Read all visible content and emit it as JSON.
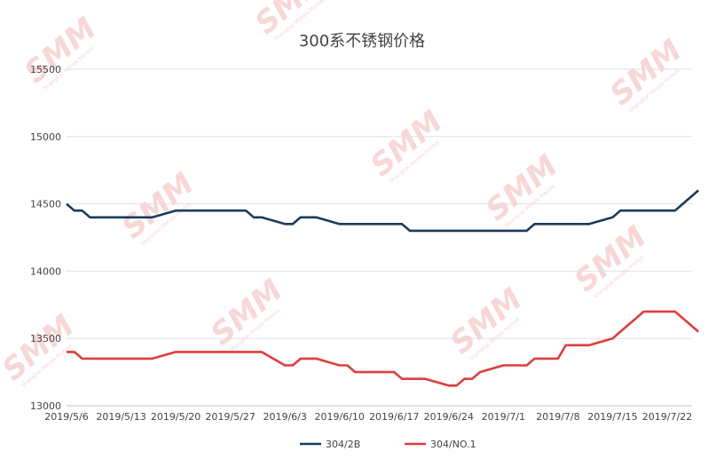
{
  "chart_data": {
    "type": "line",
    "title": "300系不锈钢价格",
    "xlabel": "",
    "ylabel": "",
    "ylim": [
      13000,
      15500
    ],
    "yticks": [
      13000,
      13500,
      14000,
      14500,
      15000,
      15500
    ],
    "grid": "horizontal",
    "legend_position": "bottom",
    "x_tick_labels": [
      "2019/5/6",
      "2019/5/13",
      "2019/5/20",
      "2019/5/27",
      "2019/6/3",
      "2019/6/10",
      "2019/6/17",
      "2019/6/24",
      "2019/7/1",
      "2019/7/8",
      "2019/7/15",
      "2019/7/22"
    ],
    "x": [
      "2019/5/6",
      "2019/5/7",
      "2019/5/8",
      "2019/5/9",
      "2019/5/10",
      "2019/5/13",
      "2019/5/14",
      "2019/5/15",
      "2019/5/16",
      "2019/5/17",
      "2019/5/20",
      "2019/5/21",
      "2019/5/22",
      "2019/5/23",
      "2019/5/24",
      "2019/5/27",
      "2019/5/28",
      "2019/5/29",
      "2019/5/30",
      "2019/5/31",
      "2019/6/3",
      "2019/6/4",
      "2019/6/5",
      "2019/6/6",
      "2019/6/7",
      "2019/6/10",
      "2019/6/11",
      "2019/6/12",
      "2019/6/13",
      "2019/6/14",
      "2019/6/17",
      "2019/6/18",
      "2019/6/19",
      "2019/6/20",
      "2019/6/21",
      "2019/6/24",
      "2019/6/25",
      "2019/6/26",
      "2019/6/27",
      "2019/6/28",
      "2019/7/1",
      "2019/7/2",
      "2019/7/3",
      "2019/7/4",
      "2019/7/5",
      "2019/7/8",
      "2019/7/9",
      "2019/7/10",
      "2019/7/11",
      "2019/7/12",
      "2019/7/15",
      "2019/7/16",
      "2019/7/17",
      "2019/7/18",
      "2019/7/19",
      "2019/7/22",
      "2019/7/23",
      "2019/7/24",
      "2019/7/25",
      "2019/7/26"
    ],
    "series": [
      {
        "name": "304/2B",
        "color": "#1a3a5c",
        "values": [
          14500,
          14450,
          14450,
          14400,
          14400,
          14400,
          14400,
          14400,
          14400,
          14400,
          14450,
          14450,
          14450,
          14450,
          14450,
          14450,
          14450,
          14450,
          14400,
          14400,
          14350,
          14350,
          14400,
          14400,
          14400,
          14350,
          14350,
          14350,
          14350,
          14350,
          14350,
          14350,
          14300,
          14300,
          14300,
          14300,
          14300,
          14300,
          14300,
          14300,
          14300,
          14300,
          14300,
          14300,
          14350,
          14350,
          14350,
          14350,
          14350,
          14350,
          14400,
          14450,
          14450,
          14450,
          14450,
          14450,
          14450,
          14500,
          14550,
          14600
        ]
      },
      {
        "name": "304/NO.1",
        "color": "#e03c3c",
        "values": [
          13400,
          13400,
          13350,
          13350,
          13350,
          13350,
          13350,
          13350,
          13350,
          13350,
          13400,
          13400,
          13400,
          13400,
          13400,
          13400,
          13400,
          13400,
          13400,
          13400,
          13300,
          13300,
          13350,
          13350,
          13350,
          13300,
          13300,
          13250,
          13250,
          13250,
          13250,
          13200,
          13200,
          13200,
          13200,
          13150,
          13150,
          13200,
          13200,
          13250,
          13300,
          13300,
          13300,
          13300,
          13350,
          13350,
          13450,
          13450,
          13450,
          13450,
          13500,
          13550,
          13600,
          13650,
          13700,
          13700,
          13700,
          13650,
          13600,
          13550
        ]
      }
    ]
  }
}
